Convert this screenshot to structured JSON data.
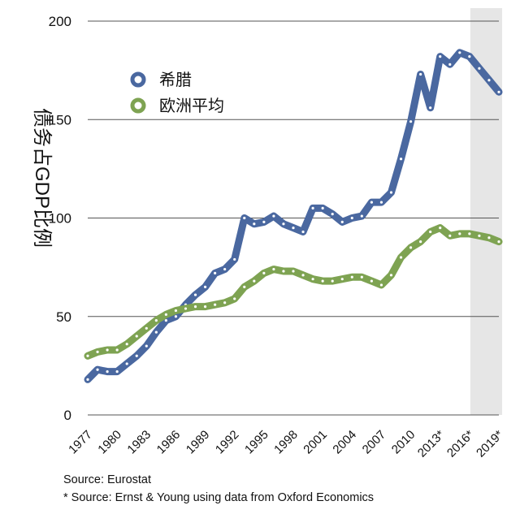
{
  "chart_data": {
    "type": "line",
    "ylabel": "债务占GDP比例",
    "xlabel": "",
    "ylim": [
      0,
      200
    ],
    "yticks": [
      0,
      50,
      100,
      150,
      200
    ],
    "grid": true,
    "legend_position": "top-left",
    "xlim": [
      1977,
      2019
    ],
    "xticks": [
      "1977",
      "1980",
      "1983",
      "1986",
      "1989",
      "1992",
      "1995",
      "1998",
      "2001",
      "2004",
      "2007",
      "2010",
      "2013*",
      "2016*",
      "2019*"
    ],
    "forecast_shading": {
      "from": 2016,
      "to": 2019
    },
    "x": [
      1977,
      1978,
      1979,
      1980,
      1981,
      1982,
      1983,
      1984,
      1985,
      1986,
      1987,
      1988,
      1989,
      1990,
      1991,
      1992,
      1993,
      1994,
      1995,
      1996,
      1997,
      1998,
      1999,
      2000,
      2001,
      2002,
      2003,
      2004,
      2005,
      2006,
      2007,
      2008,
      2009,
      2010,
      2011,
      2012,
      2013,
      2014,
      2015,
      2016,
      2017,
      2018,
      2019
    ],
    "series": [
      {
        "name": "希腊",
        "color": "#4a68a0",
        "values": [
          18,
          23,
          22,
          22,
          26,
          30,
          35,
          42,
          48,
          50,
          56,
          61,
          65,
          72,
          74,
          79,
          100,
          97,
          98,
          101,
          97,
          95,
          93,
          105,
          105,
          102,
          98,
          100,
          101,
          108,
          108,
          113,
          130,
          149,
          173,
          156,
          182,
          178,
          184,
          182,
          176,
          170,
          164
        ]
      },
      {
        "name": "欧洲平均",
        "color": "#7ea352",
        "values": [
          30,
          32,
          33,
          33,
          36,
          40,
          44,
          48,
          51,
          53,
          54,
          55,
          55,
          56,
          57,
          59,
          65,
          68,
          72,
          74,
          73,
          73,
          71,
          69,
          68,
          68,
          69,
          70,
          70,
          68,
          66,
          71,
          80,
          85,
          88,
          93,
          95,
          91,
          92,
          92,
          91,
          90,
          88
        ]
      }
    ]
  },
  "footer": {
    "source_1": "Source: Eurostat",
    "source_2": "* Source: Ernst & Young using data from Oxford Economics"
  }
}
